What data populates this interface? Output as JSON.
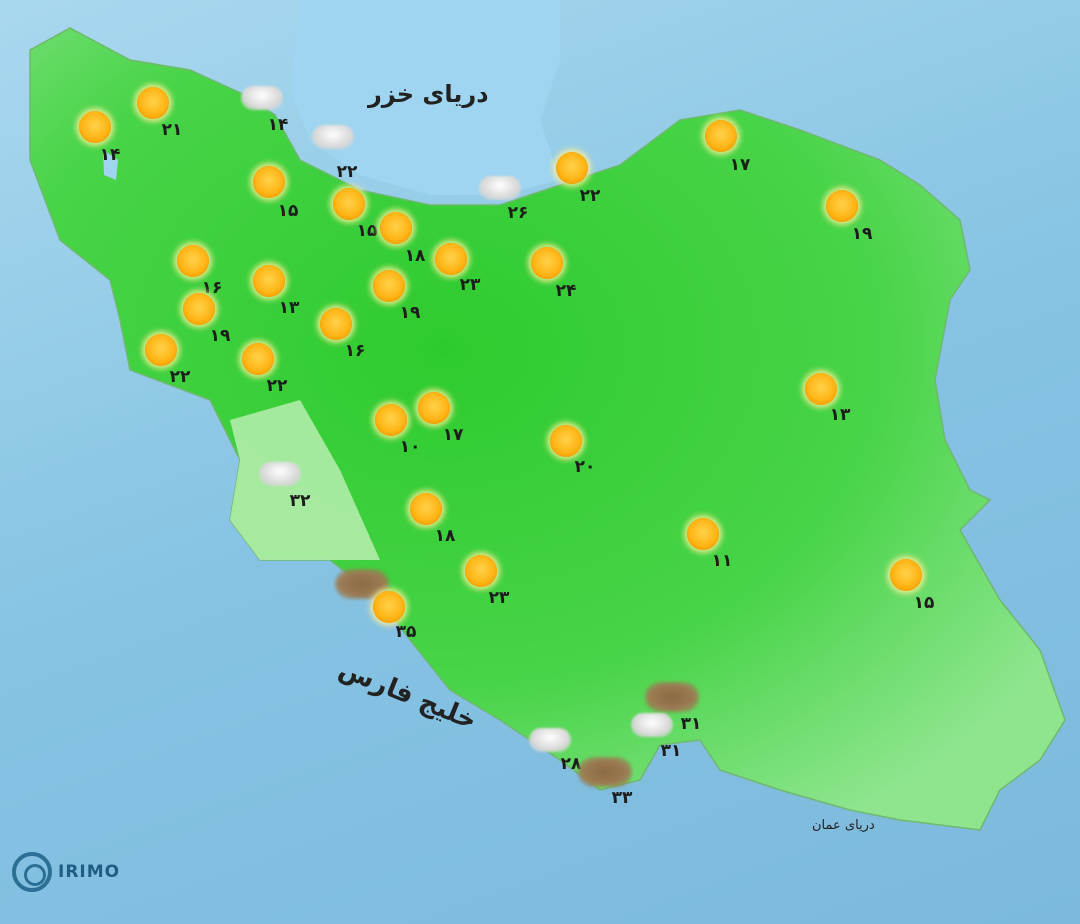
{
  "labels": {
    "caspian_sea": "دریای خزر",
    "persian_gulf": "خلیج فارس",
    "sea_of_oman": "دریای عمان",
    "logo": "IRIMO"
  },
  "colors": {
    "land": "#3fd23f",
    "sea": "#8ec9e6",
    "sun": "#ffb516",
    "dust": "#8a6a44"
  },
  "stations": [
    {
      "icon": "sun",
      "temp": "۱۴"
    },
    {
      "icon": "sun",
      "temp": "۲۱"
    },
    {
      "icon": "cloud",
      "temp": "۱۴"
    },
    {
      "icon": "cloud",
      "temp": "۲۲"
    },
    {
      "icon": "sun",
      "temp": "۱۵"
    },
    {
      "icon": "sun",
      "temp": "۱۵"
    },
    {
      "icon": "sun",
      "temp": "۱۸"
    },
    {
      "icon": "sun",
      "temp": "۲۳"
    },
    {
      "icon": "cloud",
      "temp": "۲۶"
    },
    {
      "icon": "sun",
      "temp": "۲۲"
    },
    {
      "icon": "sun",
      "temp": "۲۴"
    },
    {
      "icon": "sun",
      "temp": "۱۷"
    },
    {
      "icon": "sun",
      "temp": "۱۹"
    },
    {
      "icon": "sun",
      "temp": "۱۶"
    },
    {
      "icon": "sun",
      "temp": "۱۳"
    },
    {
      "icon": "sun",
      "temp": "۱۹"
    },
    {
      "icon": "sun",
      "temp": "۱۹"
    },
    {
      "icon": "sun",
      "temp": "۱۶"
    },
    {
      "icon": "sun",
      "temp": "۲۲"
    },
    {
      "icon": "sun",
      "temp": "۲۲"
    },
    {
      "icon": "sun",
      "temp": "۱۰"
    },
    {
      "icon": "sun",
      "temp": "۱۷"
    },
    {
      "icon": "sun",
      "temp": "۲۰"
    },
    {
      "icon": "sun",
      "temp": "۱۳"
    },
    {
      "icon": "cloud",
      "temp": "۳۲"
    },
    {
      "icon": "sun",
      "temp": "۱۸"
    },
    {
      "icon": "sun",
      "temp": "۲۳"
    },
    {
      "icon": "sun",
      "temp": "۱۱"
    },
    {
      "icon": "sun",
      "temp": "۱۵"
    },
    {
      "icon": "dust-sun",
      "temp": "۳۵"
    },
    {
      "icon": "dust",
      "temp": "۳۱"
    },
    {
      "icon": "cloud",
      "temp": "۳۱"
    },
    {
      "icon": "cloud",
      "temp": "۲۸"
    },
    {
      "icon": "dust",
      "temp": "۳۳"
    }
  ]
}
